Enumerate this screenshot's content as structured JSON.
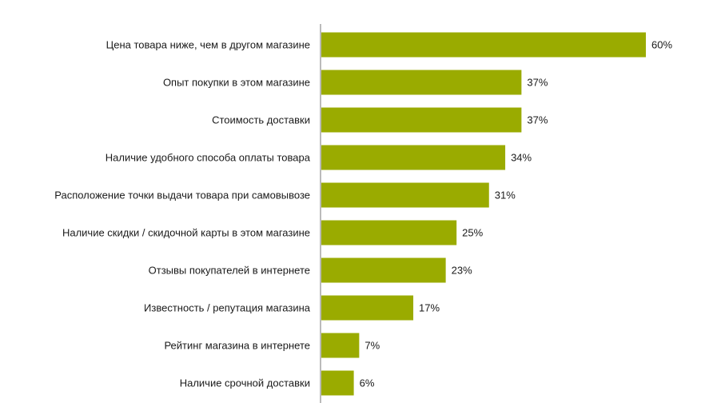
{
  "chart_data": {
    "type": "bar",
    "orientation": "horizontal",
    "title": "",
    "xlabel": "",
    "ylabel": "",
    "categories": [
      "Цена товара ниже, чем в другом магазине",
      "Опыт покупки в этом магазине",
      "Стоимость доставки",
      "Наличие удобного способа оплаты товара",
      "Расположение точки выдачи товара при самовывозе",
      "Наличие скидки / скидочной карты в этом магазине",
      "Отзывы покупателей в интернете",
      "Известность / репутация магазина",
      "Рейтинг магазина в интернете",
      "Наличие срочной доставки"
    ],
    "values": [
      60,
      37,
      37,
      34,
      31,
      25,
      23,
      17,
      7,
      6
    ],
    "value_labels": [
      "60%",
      "37%",
      "37%",
      "34%",
      "31%",
      "25%",
      "23%",
      "17%",
      "7%",
      "6%"
    ],
    "unit": "%",
    "xlim": [
      0,
      60
    ],
    "grid": false,
    "legend": "none",
    "bar_color": "#9aab00"
  }
}
